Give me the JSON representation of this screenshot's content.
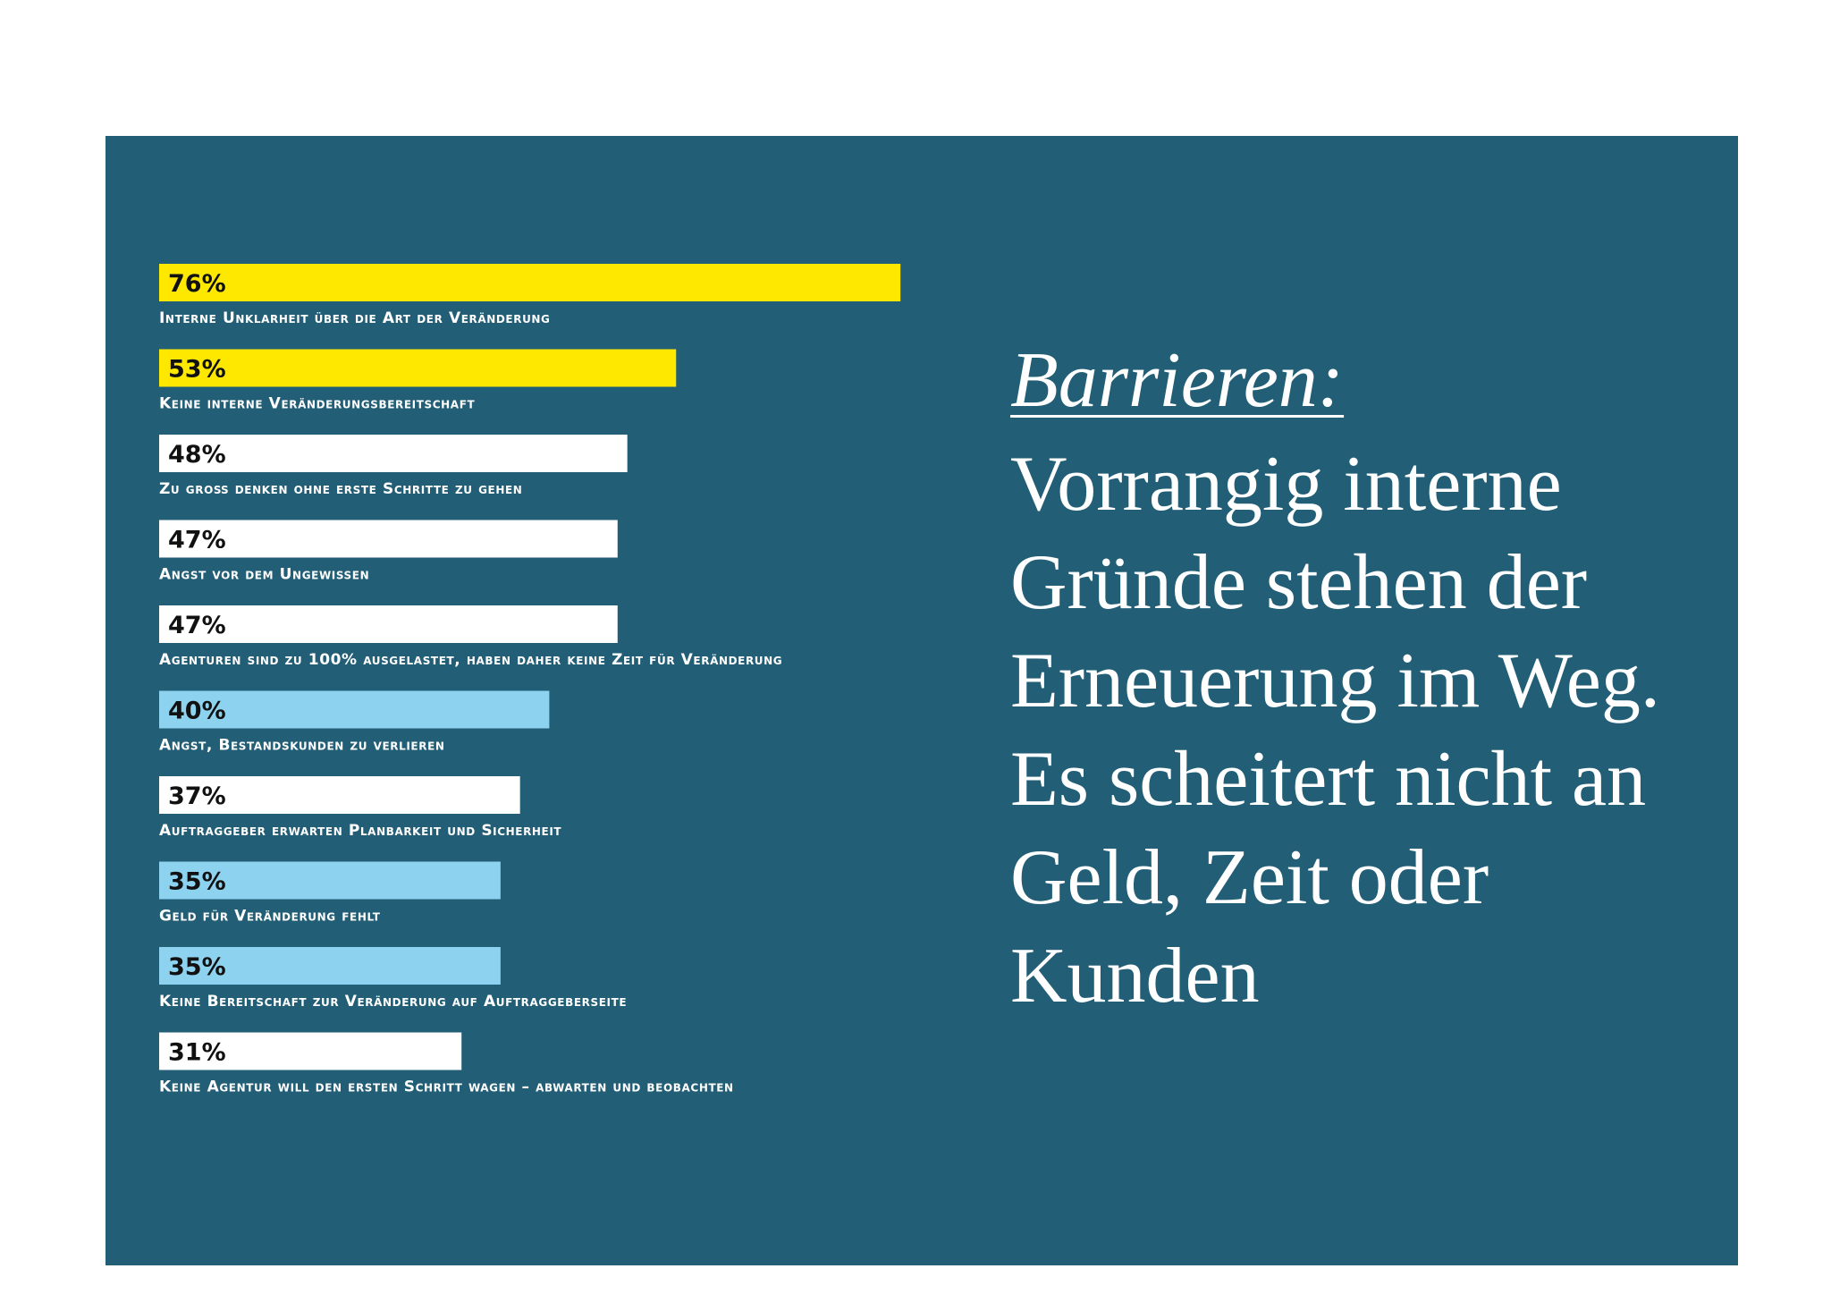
{
  "chart_data": {
    "type": "bar",
    "orientation": "horizontal",
    "unit": "%",
    "xlim": [
      0,
      100
    ],
    "grid": false,
    "categories": [
      "Interne Unklarheit über die Art der Veränderung",
      "Keine interne Veränderungsbereitschaft",
      "Zu groß denken ohne erste Schritte zu gehen",
      "Angst vor dem Ungewissen",
      "Agenturen sind zu 100% ausgelastet, haben daher keine Zeit für Veränderung",
      "Angst, Bestandskunden zu verlieren",
      "Auftraggeber erwarten Planbarkeit und Sicherheit",
      "Geld für Veränderung fehlt",
      "Keine Bereitschaft zur Veränderung auf Auftraggeberseite",
      "Keine Agentur will den ersten Schritt wagen – abwarten und beobachten"
    ],
    "values": [
      76,
      53,
      48,
      47,
      47,
      40,
      37,
      35,
      35,
      31
    ],
    "value_labels": [
      "76%",
      "53%",
      "48%",
      "47%",
      "47%",
      "40%",
      "37%",
      "35%",
      "35%",
      "31%"
    ],
    "bar_colors": [
      "#ffe800",
      "#ffe800",
      "#ffffff",
      "#ffffff",
      "#ffffff",
      "#8dd3f0",
      "#ffffff",
      "#8dd3f0",
      "#8dd3f0",
      "#ffffff"
    ]
  },
  "text": {
    "headline": "Barrieren:",
    "body": "Vorrangig interne\nGründe stehen der\nErneuerung im Weg.\nEs scheitert nicht an\nGeld, Zeit oder\nKunden"
  },
  "colors": {
    "background": "#225e76",
    "text": "#ffffff"
  }
}
